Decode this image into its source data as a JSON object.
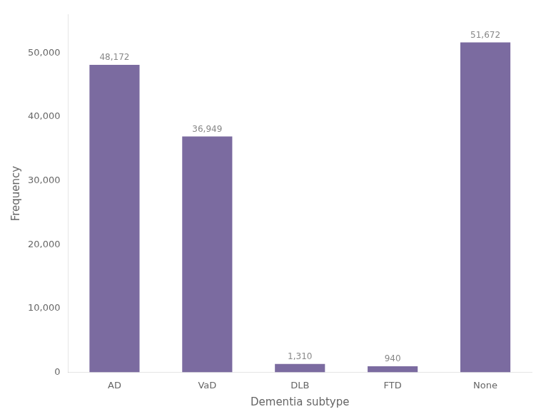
{
  "chart_data": {
    "type": "bar",
    "categories": [
      "AD",
      "VaD",
      "DLB",
      "FTD",
      "None"
    ],
    "values": [
      48172,
      36949,
      1310,
      940,
      51672
    ],
    "value_labels": [
      "48,172",
      "36,949",
      "1,310",
      "940",
      "51,672"
    ],
    "color": "#7B6BA0",
    "xlabel": "Dementia subtype",
    "ylabel": "Frequency",
    "ylim": [
      0,
      56000
    ],
    "yticks": [
      0,
      {
        "value": 10000,
        "label": "10,000"
      },
      {
        "value": 20000,
        "label": "20,000"
      },
      {
        "value": 30000,
        "label": "30,000"
      },
      {
        "value": 40000,
        "label": "40,000"
      },
      {
        "value": 50000,
        "label": "50,000"
      }
    ],
    "grid": false,
    "data_labels": true
  }
}
